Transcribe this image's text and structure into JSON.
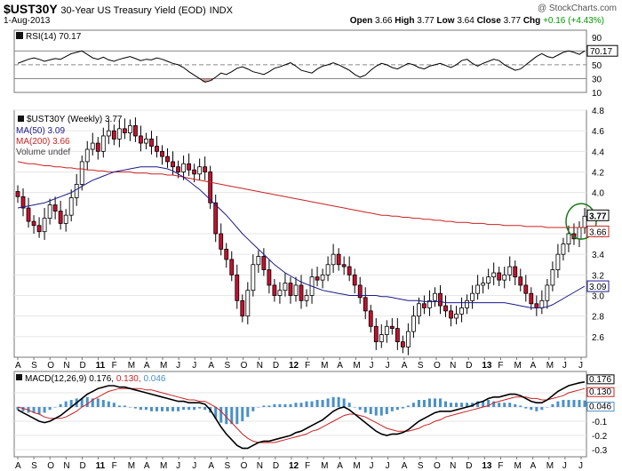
{
  "header": {
    "symbol": "$UST30Y",
    "description": "30-Year US Treasury Yield (EOD)",
    "exchange": "INDX",
    "watermark": "@ StockCharts.com",
    "date": "1-Aug-2013",
    "open_label": "Open",
    "open": "3.66",
    "high_label": "High",
    "high": "3.77",
    "low_label": "Low",
    "low": "3.64",
    "close_label": "Close",
    "close": "3.77",
    "chg_label": "Chg",
    "chg": "+0.16 (+4.43%)",
    "chg_color": "#009900"
  },
  "chart_data": [
    {
      "type": "line",
      "panel": "rsi",
      "title": "RSI(14)",
      "title_value": "70.17",
      "last_value_label": "70.17",
      "ylim": [
        10,
        100
      ],
      "ticks": [
        90,
        70,
        50,
        30,
        10
      ],
      "levels": [
        70,
        50,
        30
      ],
      "values": [
        52,
        55,
        58,
        60,
        58,
        55,
        57,
        59,
        58,
        62,
        66,
        68,
        70,
        65,
        60,
        58,
        61,
        57,
        55,
        58,
        60,
        62,
        59,
        56,
        58,
        57,
        60,
        58,
        55,
        52,
        50,
        46,
        40,
        35,
        30,
        25,
        27,
        32,
        38,
        36,
        40,
        45,
        47,
        44,
        40,
        38,
        36,
        40,
        45,
        47,
        50,
        53,
        48,
        42,
        40,
        38,
        44,
        48,
        50,
        53,
        50,
        46,
        42,
        36,
        32,
        35,
        42,
        48,
        52,
        50,
        46,
        44,
        48,
        52,
        50,
        46,
        44,
        48,
        50,
        52,
        49,
        46,
        50,
        56,
        58,
        52,
        48,
        52,
        55,
        58,
        56,
        50,
        46,
        42,
        44,
        50,
        56,
        62,
        66,
        62,
        60,
        64,
        68,
        70,
        68,
        65,
        70
      ]
    },
    {
      "type": "candlestick",
      "panel": "price",
      "title": "$UST30Y (Weekly) 3.77",
      "legend": [
        {
          "name": "MA(50) 3.09",
          "color": "#1a1a8c"
        },
        {
          "name": "MA(200) 3.66",
          "color": "#cc2222"
        },
        {
          "name": "Volume undef",
          "color": "#444444"
        }
      ],
      "ylim": [
        2.4,
        4.8
      ],
      "y_ticks": [
        "4.8",
        "4.6",
        "4.4",
        "4.2",
        "4.0",
        "3.6",
        "3.4",
        "3.2",
        "3.0",
        "2.8",
        "2.6"
      ],
      "last_labels": {
        "close": "3.77",
        "ma200": "3.66",
        "ma50": "3.09"
      },
      "x_tick_labels": [
        "A",
        "S",
        "O",
        "N",
        "D",
        "11",
        "F",
        "M",
        "A",
        "M",
        "J",
        "J",
        "A",
        "S",
        "O",
        "N",
        "D",
        "12",
        "F",
        "M",
        "A",
        "M",
        "J",
        "J",
        "A",
        "S",
        "O",
        "N",
        "D",
        "13",
        "F",
        "M",
        "A",
        "M",
        "J",
        "J"
      ],
      "bold_x_labels": [
        "11",
        "12",
        "13"
      ],
      "closes": [
        3.96,
        3.85,
        3.72,
        3.68,
        3.62,
        3.75,
        3.88,
        3.82,
        3.7,
        3.78,
        3.95,
        4.08,
        4.3,
        4.42,
        4.48,
        4.4,
        4.55,
        4.6,
        4.52,
        4.62,
        4.58,
        4.65,
        4.55,
        4.48,
        4.52,
        4.45,
        4.4,
        4.35,
        4.3,
        4.25,
        4.2,
        4.28,
        4.22,
        4.18,
        4.25,
        4.2,
        3.9,
        3.6,
        3.45,
        3.35,
        3.2,
        2.95,
        2.8,
        3.05,
        3.3,
        3.38,
        3.25,
        3.1,
        3.0,
        3.05,
        3.12,
        3.0,
        3.1,
        2.95,
        3.0,
        3.18,
        3.15,
        3.2,
        3.3,
        3.4,
        3.3,
        3.28,
        3.2,
        3.1,
        2.98,
        2.85,
        2.7,
        2.55,
        2.62,
        2.7,
        2.68,
        2.55,
        2.5,
        2.65,
        2.8,
        2.92,
        2.88,
        2.95,
        3.02,
        2.9,
        2.85,
        2.78,
        2.82,
        2.88,
        2.95,
        3.02,
        3.1,
        3.12,
        3.18,
        3.22,
        3.15,
        3.2,
        3.28,
        3.18,
        3.1,
        3.02,
        2.92,
        2.88,
        2.95,
        3.1,
        3.25,
        3.4,
        3.5,
        3.6,
        3.55,
        3.66,
        3.77
      ],
      "ma50": [
        3.85,
        3.86,
        3.87,
        3.88,
        3.89,
        3.9,
        3.92,
        3.94,
        3.96,
        3.98,
        4.0,
        4.03,
        4.06,
        4.09,
        4.12,
        4.14,
        4.16,
        4.18,
        4.2,
        4.21,
        4.22,
        4.23,
        4.24,
        4.25,
        4.25,
        4.25,
        4.25,
        4.24,
        4.23,
        4.21,
        4.18,
        4.15,
        4.11,
        4.07,
        4.03,
        3.98,
        3.93,
        3.88,
        3.83,
        3.78,
        3.72,
        3.66,
        3.6,
        3.55,
        3.5,
        3.45,
        3.4,
        3.35,
        3.3,
        3.26,
        3.22,
        3.19,
        3.16,
        3.13,
        3.11,
        3.09,
        3.07,
        3.05,
        3.04,
        3.03,
        3.02,
        3.01,
        3.0,
        3.0,
        3.0,
        3.0,
        3.0,
        3.0,
        2.99,
        2.99,
        2.98,
        2.97,
        2.96,
        2.95,
        2.95,
        2.95,
        2.94,
        2.94,
        2.94,
        2.94,
        2.93,
        2.93,
        2.93,
        2.93,
        2.93,
        2.93,
        2.93,
        2.93,
        2.93,
        2.93,
        2.93,
        2.93,
        2.92,
        2.91,
        2.9,
        2.89,
        2.88,
        2.88,
        2.88,
        2.89,
        2.91,
        2.94,
        2.97,
        3.0,
        3.03,
        3.06,
        3.09
      ],
      "ma200": [
        4.3,
        4.29,
        4.28,
        4.28,
        4.27,
        4.26,
        4.26,
        4.25,
        4.25,
        4.24,
        4.24,
        4.23,
        4.23,
        4.22,
        4.22,
        4.21,
        4.21,
        4.2,
        4.2,
        4.2,
        4.2,
        4.2,
        4.19,
        4.19,
        4.19,
        4.18,
        4.18,
        4.18,
        4.17,
        4.17,
        4.16,
        4.15,
        4.14,
        4.13,
        4.12,
        4.11,
        4.1,
        4.09,
        4.08,
        4.07,
        4.06,
        4.05,
        4.04,
        4.03,
        4.02,
        4.01,
        4.0,
        3.99,
        3.98,
        3.97,
        3.96,
        3.95,
        3.94,
        3.93,
        3.92,
        3.91,
        3.9,
        3.89,
        3.88,
        3.87,
        3.86,
        3.85,
        3.84,
        3.83,
        3.82,
        3.81,
        3.8,
        3.79,
        3.78,
        3.78,
        3.77,
        3.77,
        3.76,
        3.76,
        3.75,
        3.75,
        3.74,
        3.74,
        3.73,
        3.73,
        3.72,
        3.72,
        3.71,
        3.71,
        3.71,
        3.7,
        3.7,
        3.7,
        3.69,
        3.69,
        3.69,
        3.68,
        3.68,
        3.68,
        3.68,
        3.67,
        3.67,
        3.67,
        3.67,
        3.66,
        3.66,
        3.66,
        3.66,
        3.66,
        3.66,
        3.66,
        3.66
      ]
    },
    {
      "type": "line",
      "panel": "macd",
      "title": "MACD(12,26,9)",
      "macd_value": "0.176",
      "signal_value": "0.130",
      "hist_value": "0.046",
      "last_labels": [
        "0.176",
        "0.130",
        "0.046"
      ],
      "ylim": [
        -0.35,
        0.25
      ],
      "y_ticks": [
        "0.1",
        "0.0",
        "-0.1",
        "-0.2",
        "-0.3"
      ],
      "x_tick_labels": [
        "A",
        "S",
        "O",
        "N",
        "D",
        "11",
        "F",
        "M",
        "A",
        "M",
        "J",
        "J",
        "A",
        "S",
        "O",
        "N",
        "D",
        "12",
        "F",
        "M",
        "A",
        "M",
        "J",
        "J",
        "A",
        "S",
        "O",
        "N",
        "D",
        "13",
        "F",
        "M",
        "A",
        "M",
        "J",
        "J"
      ],
      "bold_x_labels": [
        "11",
        "12",
        "13"
      ],
      "macd": [
        -0.02,
        -0.04,
        -0.06,
        -0.08,
        -0.1,
        -0.11,
        -0.1,
        -0.08,
        -0.06,
        -0.03,
        0.0,
        0.03,
        0.06,
        0.09,
        0.11,
        0.13,
        0.14,
        0.15,
        0.15,
        0.14,
        0.14,
        0.13,
        0.12,
        0.11,
        0.1,
        0.09,
        0.08,
        0.07,
        0.06,
        0.05,
        0.04,
        0.04,
        0.03,
        0.03,
        0.03,
        0.02,
        -0.02,
        -0.08,
        -0.14,
        -0.19,
        -0.23,
        -0.27,
        -0.29,
        -0.29,
        -0.27,
        -0.25,
        -0.24,
        -0.24,
        -0.23,
        -0.22,
        -0.21,
        -0.2,
        -0.18,
        -0.17,
        -0.15,
        -0.13,
        -0.11,
        -0.09,
        -0.06,
        -0.03,
        -0.01,
        0.0,
        -0.02,
        -0.05,
        -0.08,
        -0.11,
        -0.14,
        -0.17,
        -0.19,
        -0.2,
        -0.19,
        -0.19,
        -0.18,
        -0.16,
        -0.13,
        -0.1,
        -0.08,
        -0.06,
        -0.04,
        -0.03,
        -0.03,
        -0.03,
        -0.02,
        -0.01,
        0.0,
        0.01,
        0.03,
        0.04,
        0.06,
        0.07,
        0.07,
        0.08,
        0.09,
        0.09,
        0.08,
        0.06,
        0.04,
        0.03,
        0.03,
        0.05,
        0.08,
        0.11,
        0.13,
        0.15,
        0.16,
        0.17,
        0.176
      ],
      "signal": [
        0.0,
        -0.01,
        -0.02,
        -0.04,
        -0.05,
        -0.07,
        -0.08,
        -0.08,
        -0.08,
        -0.07,
        -0.05,
        -0.03,
        0.0,
        0.02,
        0.05,
        0.07,
        0.09,
        0.11,
        0.12,
        0.13,
        0.13,
        0.13,
        0.13,
        0.13,
        0.12,
        0.12,
        0.11,
        0.1,
        0.09,
        0.08,
        0.07,
        0.06,
        0.05,
        0.05,
        0.04,
        0.04,
        0.02,
        0.0,
        -0.03,
        -0.07,
        -0.11,
        -0.15,
        -0.19,
        -0.22,
        -0.24,
        -0.25,
        -0.25,
        -0.25,
        -0.25,
        -0.24,
        -0.23,
        -0.22,
        -0.21,
        -0.2,
        -0.19,
        -0.17,
        -0.16,
        -0.14,
        -0.12,
        -0.1,
        -0.08,
        -0.06,
        -0.05,
        -0.05,
        -0.06,
        -0.07,
        -0.09,
        -0.11,
        -0.13,
        -0.15,
        -0.16,
        -0.17,
        -0.17,
        -0.17,
        -0.16,
        -0.15,
        -0.13,
        -0.12,
        -0.1,
        -0.09,
        -0.07,
        -0.06,
        -0.05,
        -0.04,
        -0.03,
        -0.02,
        -0.01,
        0.0,
        0.01,
        0.03,
        0.04,
        0.05,
        0.06,
        0.07,
        0.07,
        0.07,
        0.06,
        0.06,
        0.05,
        0.05,
        0.06,
        0.07,
        0.08,
        0.1,
        0.11,
        0.12,
        0.13
      ]
    }
  ]
}
